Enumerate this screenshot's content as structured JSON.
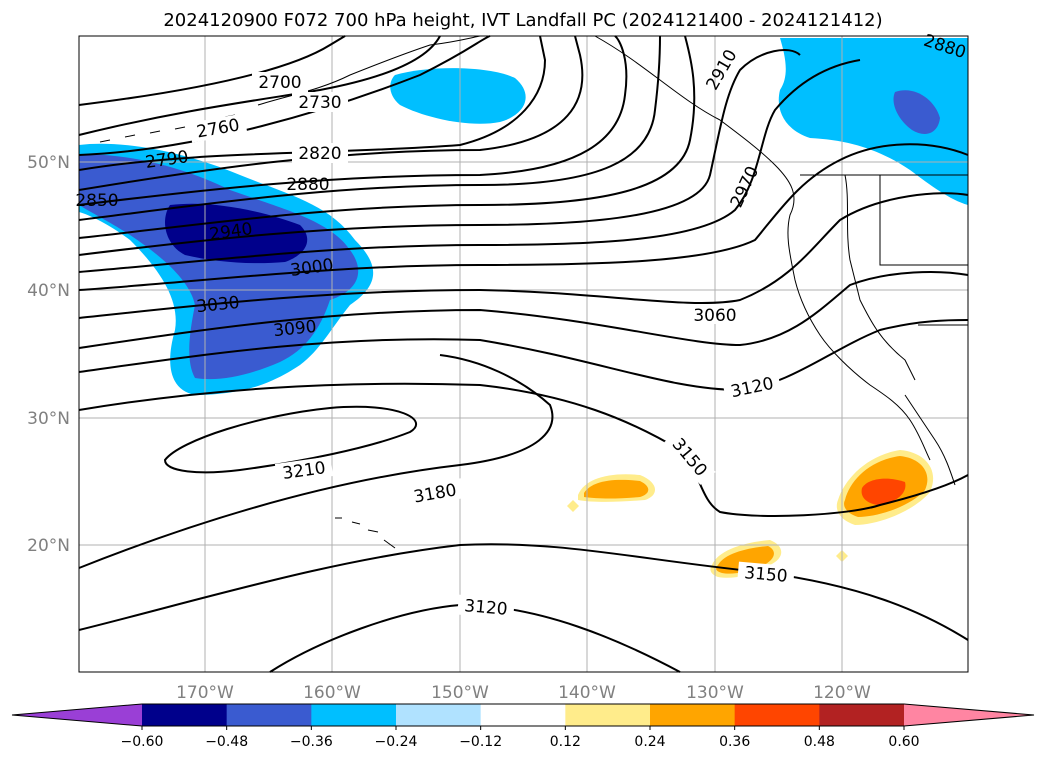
{
  "title": "2024120900 F072 700 hPa height, IVT Landfall PC (2024121400 - 2024121412)",
  "map": {
    "lon_ticks": [
      "170°W",
      "160°W",
      "150°W",
      "140°W",
      "130°W",
      "120°W"
    ],
    "lat_ticks": [
      "50°N",
      "40°N",
      "30°N",
      "20°N"
    ],
    "contour_labels": [
      "2700",
      "2730",
      "2760",
      "2790",
      "2820",
      "2850",
      "2880",
      "2940",
      "3000",
      "3030",
      "3090",
      "3060",
      "3120",
      "3150",
      "3180",
      "3210",
      "3150",
      "3120",
      "2880",
      "2910",
      "2970"
    ]
  },
  "colorbar": {
    "ticks": [
      "−0.60",
      "−0.48",
      "−0.36",
      "−0.24",
      "−0.12",
      "0.12",
      "0.24",
      "0.36",
      "0.48",
      "0.60"
    ],
    "colors": [
      "#9a3fd6",
      "#00008b",
      "#3a5bd0",
      "#00bfff",
      "#b0e2ff",
      "#ffffff",
      "#ffec8b",
      "#ffa500",
      "#ff4500",
      "#b22222",
      "#ff85a2"
    ]
  }
}
